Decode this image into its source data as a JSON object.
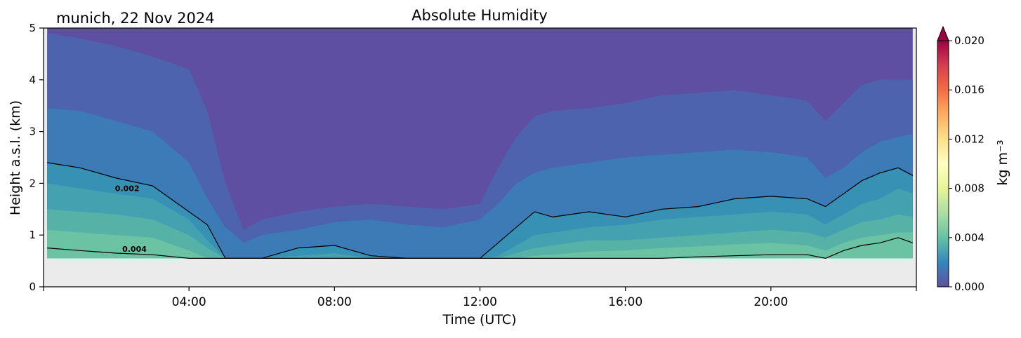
{
  "chart_data": {
    "type": "contourf",
    "title": "Absolute Humidity",
    "location_date": "munich, 22 Nov 2024",
    "xlabel": "Time (UTC)",
    "ylabel": "Height a.s.l. (km)",
    "colorbar_label": "kg m⁻³",
    "x_ticks": [
      "04:00",
      "08:00",
      "12:00",
      "16:00",
      "20:00"
    ],
    "x_tick_hours": [
      4,
      8,
      12,
      16,
      20
    ],
    "xlim_hours": [
      0,
      24
    ],
    "y_ticks": [
      0,
      1,
      2,
      3,
      4,
      5
    ],
    "ylim": [
      0,
      5
    ],
    "data_bottom_km": 0.55,
    "colorbar_ticks": [
      "0.000",
      "0.004",
      "0.008",
      "0.012",
      "0.016",
      "0.020"
    ],
    "colorbar_range": [
      0,
      0.02
    ],
    "colorbar_extend": "max",
    "contour_lines": [
      {
        "label": "0.002",
        "label_x_hour": 2.3,
        "label_y_km": 1.85
      },
      {
        "label": "0.004",
        "label_x_hour": 2.5,
        "label_y_km": 0.68
      }
    ],
    "iso_hours": [
      0.1,
      1,
      2,
      3,
      4,
      4.5,
      5,
      5.5,
      6,
      7,
      8,
      9,
      10,
      11,
      12,
      12.5,
      13,
      13.5,
      14,
      15,
      16,
      17,
      18,
      19,
      20,
      21,
      21.5,
      22,
      22.5,
      23,
      23.5,
      23.9
    ],
    "iso_levels": [
      {
        "value": 0.001,
        "heights_km": [
          4.9,
          4.8,
          4.65,
          4.45,
          4.2,
          3.4,
          2.0,
          1.1,
          1.3,
          1.45,
          1.55,
          1.6,
          1.55,
          1.5,
          1.6,
          2.3,
          2.9,
          3.3,
          3.4,
          3.45,
          3.55,
          3.7,
          3.75,
          3.8,
          3.7,
          3.6,
          3.2,
          3.55,
          3.9,
          4.0,
          4.0,
          4.0
        ]
      },
      {
        "value": 0.0015,
        "heights_km": [
          3.45,
          3.4,
          3.2,
          3.0,
          2.4,
          1.7,
          1.15,
          0.85,
          1.0,
          1.1,
          1.25,
          1.3,
          1.2,
          1.15,
          1.3,
          1.6,
          2.0,
          2.2,
          2.3,
          2.4,
          2.5,
          2.55,
          2.6,
          2.65,
          2.6,
          2.5,
          2.1,
          2.3,
          2.6,
          2.8,
          2.9,
          2.95
        ]
      },
      {
        "value": 0.002,
        "heights_km": [
          2.4,
          2.3,
          2.1,
          1.95,
          1.45,
          1.2,
          0.55,
          0.55,
          0.55,
          0.75,
          0.8,
          0.6,
          0.55,
          0.55,
          0.55,
          0.85,
          1.15,
          1.45,
          1.35,
          1.45,
          1.35,
          1.5,
          1.55,
          1.7,
          1.75,
          1.7,
          1.55,
          1.8,
          2.05,
          2.2,
          2.3,
          2.15
        ]
      },
      {
        "value": 0.0025,
        "heights_km": [
          2.0,
          1.9,
          1.8,
          1.7,
          1.3,
          0.9,
          0.55,
          0.55,
          0.55,
          0.6,
          0.65,
          0.55,
          0.55,
          0.55,
          0.55,
          0.6,
          0.8,
          1.0,
          1.05,
          1.15,
          1.2,
          1.3,
          1.35,
          1.4,
          1.45,
          1.4,
          1.2,
          1.4,
          1.6,
          1.7,
          1.9,
          1.8
        ]
      },
      {
        "value": 0.003,
        "heights_km": [
          1.5,
          1.45,
          1.4,
          1.3,
          1.0,
          0.75,
          0.55,
          0.55,
          0.55,
          0.55,
          0.55,
          0.55,
          0.55,
          0.55,
          0.55,
          0.55,
          0.65,
          0.75,
          0.8,
          0.9,
          0.9,
          0.95,
          1.0,
          1.05,
          1.1,
          1.05,
          0.95,
          1.1,
          1.25,
          1.3,
          1.4,
          1.35
        ]
      },
      {
        "value": 0.0035,
        "heights_km": [
          1.1,
          1.05,
          1.0,
          0.95,
          0.7,
          0.55,
          0.55,
          0.55,
          0.55,
          0.55,
          0.55,
          0.55,
          0.55,
          0.55,
          0.55,
          0.55,
          0.55,
          0.6,
          0.62,
          0.68,
          0.7,
          0.75,
          0.78,
          0.82,
          0.85,
          0.8,
          0.7,
          0.85,
          0.95,
          1.0,
          1.05,
          1.05
        ]
      },
      {
        "value": 0.004,
        "heights_km": [
          0.75,
          0.7,
          0.65,
          0.62,
          0.55,
          0.55,
          0.55,
          0.55,
          0.55,
          0.55,
          0.55,
          0.55,
          0.55,
          0.55,
          0.55,
          0.55,
          0.55,
          0.55,
          0.55,
          0.55,
          0.55,
          0.55,
          0.58,
          0.6,
          0.62,
          0.62,
          0.55,
          0.7,
          0.8,
          0.85,
          0.95,
          0.85
        ]
      }
    ]
  },
  "colors": {
    "level_fills": [
      "#5e4fa2",
      "#4d63ad",
      "#3c7bb6",
      "#3791b4",
      "#44a2b0",
      "#56b2a7",
      "#6cc3a3"
    ],
    "background_fill": "#ebebeb",
    "colorbar_stops": [
      "#5e4fa2",
      "#3288bd",
      "#66c2a5",
      "#abdda4",
      "#e6f598",
      "#ffffbf",
      "#fee08b",
      "#fdae61",
      "#f46d43",
      "#d53e4f",
      "#9e0142"
    ]
  }
}
